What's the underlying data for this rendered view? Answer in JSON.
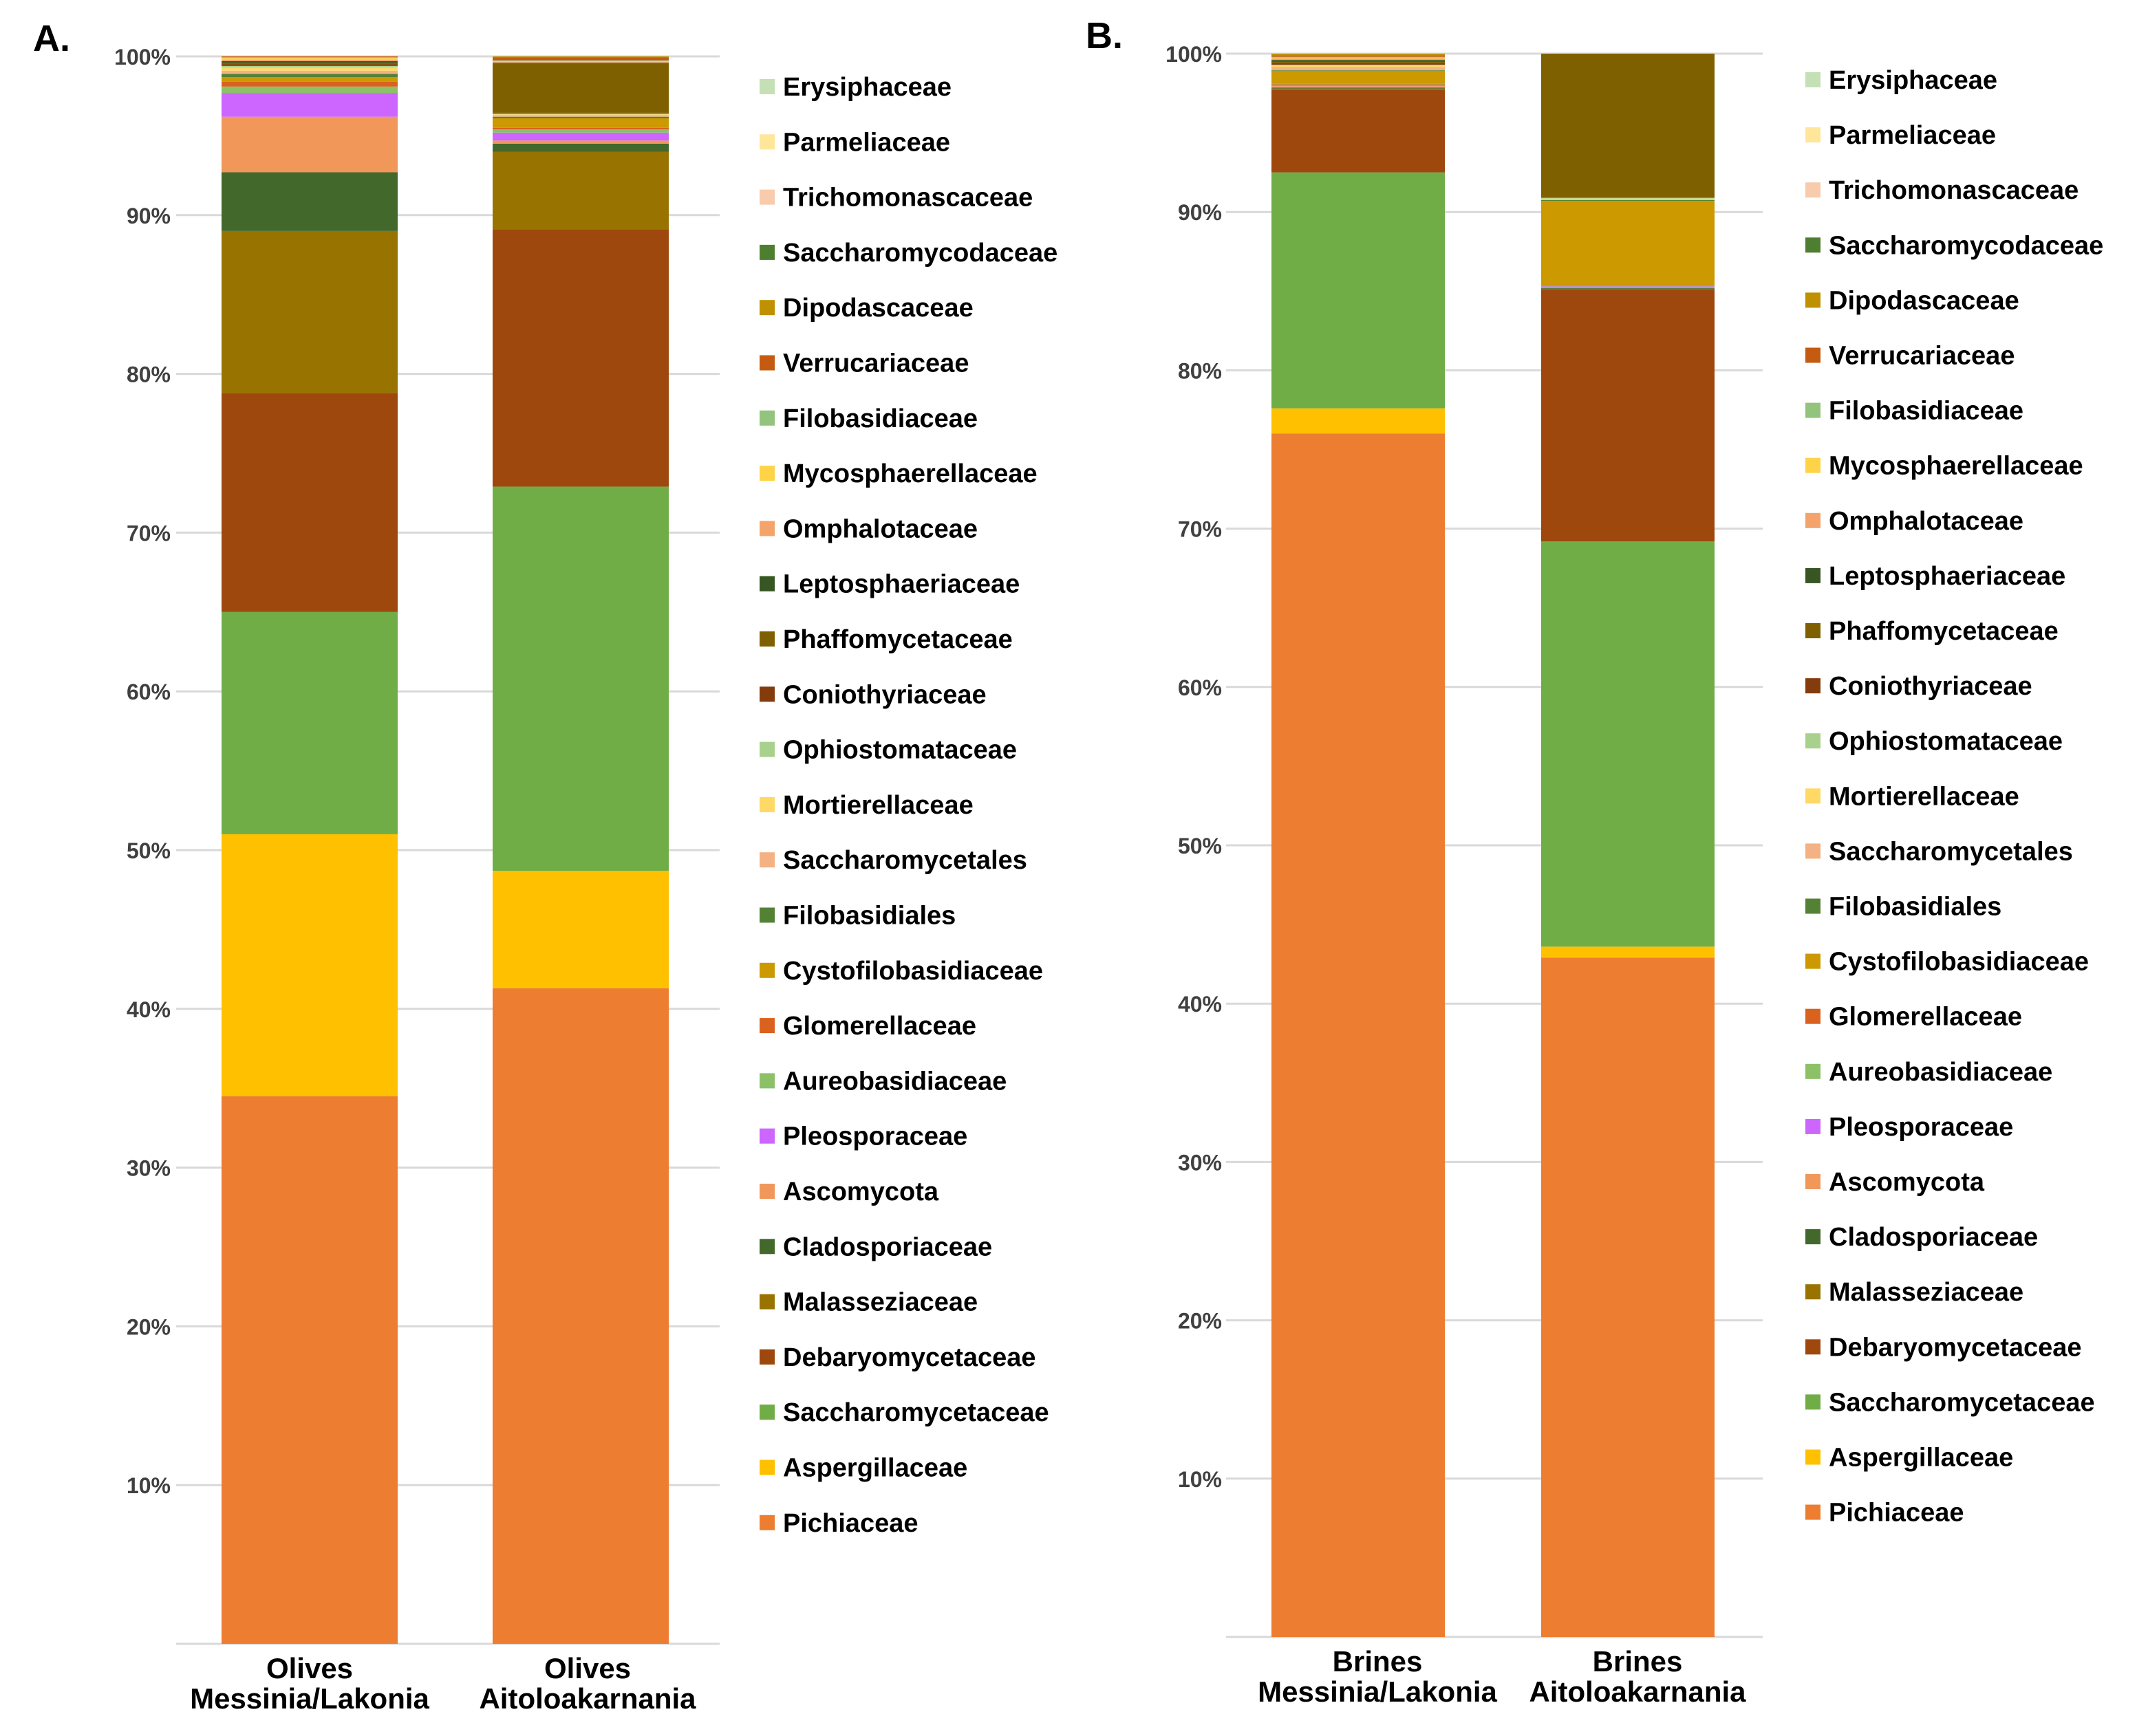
{
  "families": [
    {
      "name": "Pichiaceae",
      "color": "#ED7D31"
    },
    {
      "name": "Aspergillaceae",
      "color": "#FFC000"
    },
    {
      "name": "Saccharomycetaceae",
      "color": "#70AD47"
    },
    {
      "name": "Debaryomycetaceae",
      "color": "#9E480E"
    },
    {
      "name": "Malasseziaceae",
      "color": "#997300"
    },
    {
      "name": "Cladosporiaceae",
      "color": "#43682B"
    },
    {
      "name": "Ascomycota",
      "color": "#F1975A"
    },
    {
      "name": "Pleosporaceae",
      "color": "#CC66FF"
    },
    {
      "name": "Aureobasidiaceae",
      "color": "#8CC168"
    },
    {
      "name": "Glomerellaceae",
      "color": "#D9621F"
    },
    {
      "name": "Cystofilobasidiaceae",
      "color": "#CC9900"
    },
    {
      "name": "Filobasidiales",
      "color": "#548235"
    },
    {
      "name": "Saccharomycetales",
      "color": "#F4B183"
    },
    {
      "name": "Mortierellaceae",
      "color": "#FFD966"
    },
    {
      "name": "Ophiostomataceae",
      "color": "#A9D18E"
    },
    {
      "name": "Coniothyriaceae",
      "color": "#843C0C"
    },
    {
      "name": "Phaffomycetaceae",
      "color": "#7F6000"
    },
    {
      "name": "Leptosphaeriaceae",
      "color": "#375623"
    },
    {
      "name": "Omphalotaceae",
      "color": "#F4A46A"
    },
    {
      "name": "Mycosphaerellaceae",
      "color": "#FFD347"
    },
    {
      "name": "Filobasidiaceae",
      "color": "#93C47D"
    },
    {
      "name": "Verrucariaceae",
      "color": "#C55A11"
    },
    {
      "name": "Dipodascaceae",
      "color": "#BF9000"
    },
    {
      "name": "Saccharomycodaceae",
      "color": "#4E7F30"
    },
    {
      "name": "Trichomonascaceae",
      "color": "#F8CBAD"
    },
    {
      "name": "Parmeliaceae",
      "color": "#FFE699"
    },
    {
      "name": "Erysiphaceae",
      "color": "#C5E0B4"
    }
  ],
  "chart_data": [
    {
      "panel_label": "A.",
      "type": "bar",
      "stacked": true,
      "ylim": [
        0,
        100
      ],
      "yticks": [
        "10%",
        "20%",
        "30%",
        "40%",
        "50%",
        "60%",
        "70%",
        "80%",
        "90%",
        "100%"
      ],
      "grid": true,
      "legend": "right",
      "categories": [
        {
          "line1": "Olives",
          "line2": "Messinia/Lakonia"
        },
        {
          "line1": "Olives",
          "line2": "Aitoloakarnania"
        }
      ],
      "series": [
        {
          "name": "Pichiaceae",
          "values": [
            34.5,
            41.3
          ]
        },
        {
          "name": "Aspergillaceae",
          "values": [
            16.5,
            7.4
          ]
        },
        {
          "name": "Saccharomycetaceae",
          "values": [
            14.0,
            24.2
          ]
        },
        {
          "name": "Debaryomycetaceae",
          "values": [
            13.8,
            16.2
          ]
        },
        {
          "name": "Malasseziaceae",
          "values": [
            10.2,
            4.9
          ]
        },
        {
          "name": "Cladosporiaceae",
          "values": [
            3.7,
            0.5
          ]
        },
        {
          "name": "Ascomycota",
          "values": [
            3.5,
            0.2
          ]
        },
        {
          "name": "Pleosporaceae",
          "values": [
            1.5,
            0.5
          ]
        },
        {
          "name": "Aureobasidiaceae",
          "values": [
            0.4,
            0.2
          ]
        },
        {
          "name": "Glomerellaceae",
          "values": [
            0.3,
            0.1
          ]
        },
        {
          "name": "Cystofilobasidiaceae",
          "values": [
            0.3,
            0.6
          ]
        },
        {
          "name": "Filobasidiales",
          "values": [
            0.2,
            0.1
          ]
        },
        {
          "name": "Saccharomycetales",
          "values": [
            0.2,
            0.1
          ]
        },
        {
          "name": "Mortierellaceae",
          "values": [
            0.2,
            0.05
          ]
        },
        {
          "name": "Ophiostomataceae",
          "values": [
            0.1,
            0.05
          ]
        },
        {
          "name": "Coniothyriaceae",
          "values": [
            0.1,
            0.05
          ]
        },
        {
          "name": "Phaffomycetaceae",
          "values": [
            0.1,
            3.1
          ]
        },
        {
          "name": "Leptosphaeriaceae",
          "values": [
            0.1,
            0.05
          ]
        },
        {
          "name": "Omphalotaceae",
          "values": [
            0.1,
            0.05
          ]
        },
        {
          "name": "Mycosphaerellaceae",
          "values": [
            0.1,
            0.05
          ]
        },
        {
          "name": "Filobasidiaceae",
          "values": [
            0.05,
            0.05
          ]
        },
        {
          "name": "Verrucariaceae",
          "values": [
            0.05,
            0.2
          ]
        },
        {
          "name": "Dipodascaceae",
          "values": [
            0.1,
            0.05
          ]
        },
        {
          "name": "Saccharomycodaceae",
          "values": [
            0.05,
            0.05
          ]
        },
        {
          "name": "Trichomonascaceae",
          "values": [
            0.05,
            0.05
          ]
        },
        {
          "name": "Parmeliaceae",
          "values": [
            0.05,
            0.05
          ]
        },
        {
          "name": "Erysiphaceae",
          "values": [
            0.05,
            0.2
          ]
        }
      ]
    },
    {
      "panel_label": "B.",
      "type": "bar",
      "stacked": true,
      "ylim": [
        0,
        100
      ],
      "yticks": [
        "10%",
        "20%",
        "30%",
        "40%",
        "50%",
        "60%",
        "70%",
        "80%",
        "90%",
        "100%"
      ],
      "grid": true,
      "legend": "right",
      "categories": [
        {
          "line1": "Brines",
          "line2": "Messinia/Lakonia"
        },
        {
          "line1": "Brines",
          "line2": "Aitoloakarnania"
        }
      ],
      "series": [
        {
          "name": "Pichiaceae",
          "values": [
            76.0,
            42.9
          ]
        },
        {
          "name": "Aspergillaceae",
          "values": [
            1.6,
            0.7
          ]
        },
        {
          "name": "Saccharomycetaceae",
          "values": [
            14.9,
            25.6
          ]
        },
        {
          "name": "Debaryomycetaceae",
          "values": [
            5.2,
            15.9
          ]
        },
        {
          "name": "Malasseziaceae",
          "values": [
            0.1,
            0.05
          ]
        },
        {
          "name": "Cladosporiaceae",
          "values": [
            0.05,
            0.05
          ]
        },
        {
          "name": "Ascomycota",
          "values": [
            0.1,
            0.05
          ]
        },
        {
          "name": "Pleosporaceae",
          "values": [
            0.05,
            0.05
          ]
        },
        {
          "name": "Aureobasidiaceae",
          "values": [
            0.05,
            0.05
          ]
        },
        {
          "name": "Glomerellaceae",
          "values": [
            0.05,
            0.05
          ]
        },
        {
          "name": "Cystofilobasidiaceae",
          "values": [
            0.8,
            5.3
          ]
        },
        {
          "name": "Filobasidiales",
          "values": [
            0.05,
            0.05
          ]
        },
        {
          "name": "Saccharomycetales",
          "values": [
            0.2,
            0.05
          ]
        },
        {
          "name": "Mortierellaceae",
          "values": [
            0.1,
            0.05
          ]
        },
        {
          "name": "Ophiostomataceae",
          "values": [
            0.05,
            0.05
          ]
        },
        {
          "name": "Coniothyriaceae",
          "values": [
            0.1,
            0.05
          ]
        },
        {
          "name": "Phaffomycetaceae",
          "values": [
            0.1,
            9.2
          ]
        },
        {
          "name": "Leptosphaeriaceae",
          "values": [
            0.1,
            0.05
          ]
        },
        {
          "name": "Omphalotaceae",
          "values": [
            0.1,
            0.05
          ]
        },
        {
          "name": "Mycosphaerellaceae",
          "values": [
            0.05,
            0.05
          ]
        },
        {
          "name": "Filobasidiaceae",
          "values": [
            0.05,
            0.05
          ]
        },
        {
          "name": "Verrucariaceae",
          "values": [
            0.1,
            0.1
          ]
        },
        {
          "name": "Dipodascaceae",
          "values": [
            0.1,
            0.05
          ]
        },
        {
          "name": "Saccharomycodaceae",
          "values": [
            0.05,
            0.05
          ]
        },
        {
          "name": "Trichomonascaceae",
          "values": [
            0.3,
            0.05
          ]
        },
        {
          "name": "Parmeliaceae",
          "values": [
            0.05,
            0.05
          ]
        },
        {
          "name": "Erysiphaceae",
          "values": [
            0.05,
            0.05
          ]
        }
      ]
    }
  ]
}
